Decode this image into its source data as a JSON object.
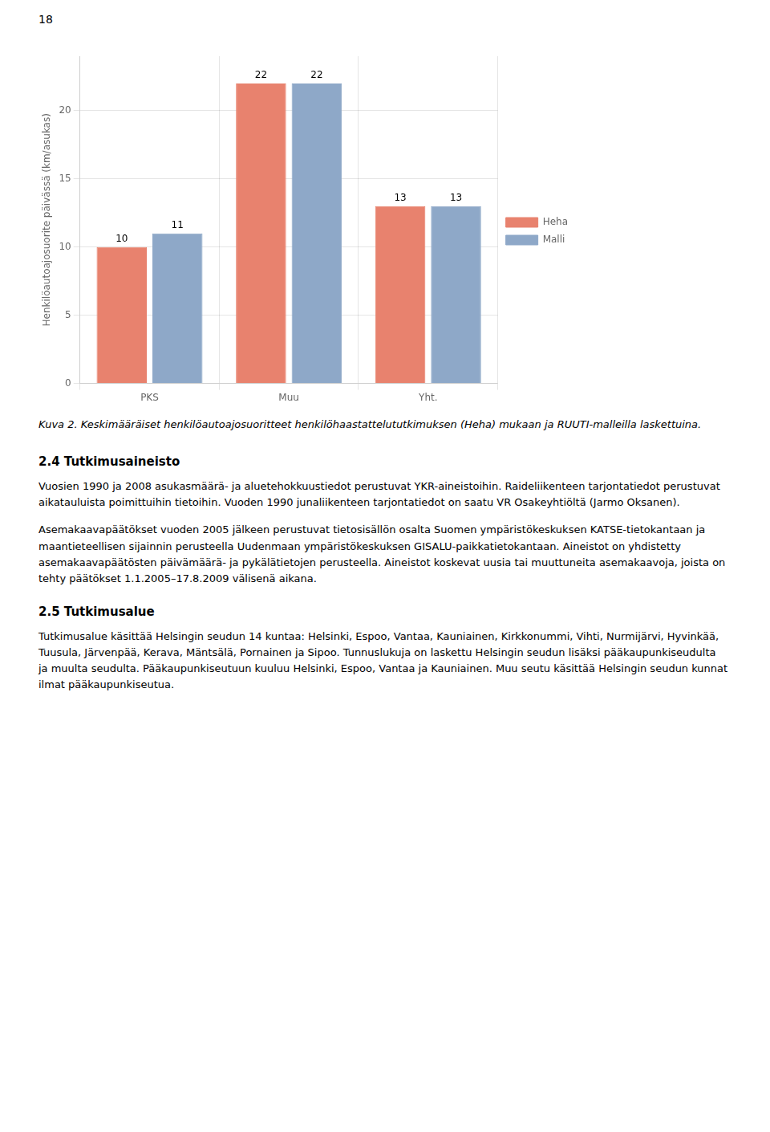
{
  "page_number": "18",
  "chart_data": {
    "type": "bar",
    "categories": [
      "PKS",
      "Muu",
      "Yht."
    ],
    "series": [
      {
        "name": "Heha",
        "color": "#E8826E",
        "values": [
          10,
          22,
          13
        ]
      },
      {
        "name": "Malli",
        "color": "#8EA8C8",
        "values": [
          11,
          22,
          13
        ]
      }
    ],
    "ylabel": "Henkilöautoajosuorite päivässä (km/asukas)",
    "ylim": [
      0,
      24
    ],
    "yticks": [
      0,
      5,
      10,
      15,
      20
    ],
    "grid": true,
    "legend": "right",
    "data_labels": true
  },
  "caption": "Kuva 2. Keskimääräiset henkilöautoajosuoritteet henkilöhaastattelututkimuksen (Heha) mukaan ja RUUTI-malleilla laskettuina.",
  "sections": [
    {
      "title": "2.4 Tutkimusaineisto",
      "paragraphs": [
        "Vuosien 1990 ja 2008 asukasmäärä- ja aluetehokkuustiedot perustuvat YKR-aineistoihin. Raideliikenteen tarjontatiedot perustuvat aikatauluista poimittuihin tietoihin. Vuoden 1990 junaliikenteen tarjontatiedot on saatu VR Osakeyhtiöltä (Jarmo Oksanen).",
        "Asemakaavapäätökset vuoden 2005 jälkeen perustuvat tietosisällön osalta Suomen ympäristökeskuksen KATSE-tietokantaan ja maantieteellisen sijainnin perusteella Uudenmaan ympäristökeskuksen GISALU-paikkatietokantaan. Aineistot on yhdistetty asemakaavapäätösten päivämäärä- ja pykälätietojen perusteella. Aineistot koskevat uusia tai muuttuneita asemakaavoja, joista on tehty päätökset 1.1.2005–17.8.2009 välisenä aikana."
      ]
    },
    {
      "title": "2.5 Tutkimusalue",
      "paragraphs": [
        "Tutkimusalue käsittää Helsingin seudun 14 kuntaa: Helsinki, Espoo, Vantaa, Kauniainen, Kirkkonummi, Vihti, Nurmijärvi, Hyvinkää, Tuusula, Järvenpää, Kerava, Mäntsälä, Pornainen ja Sipoo. Tunnuslukuja on laskettu Helsingin seudun lisäksi pääkaupunkiseudulta ja muulta seudulta. Pääkaupunkiseutuun kuuluu Helsinki, Espoo, Vantaa ja Kauniainen. Muu seutu käsittää Helsingin seudun kunnat ilmat pääkaupunkiseutua."
      ]
    }
  ]
}
